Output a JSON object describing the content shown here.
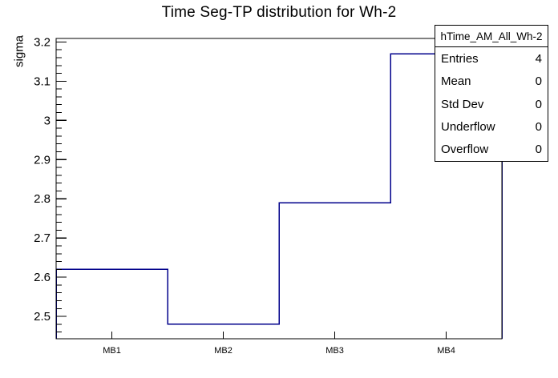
{
  "title": "Time Seg-TP distribution for Wh-2",
  "y_axis": {
    "label": "sigma"
  },
  "stats_box": {
    "header": "hTime_AM_All_Wh-2",
    "rows": [
      {
        "label": "Entries",
        "value": "4"
      },
      {
        "label": "Mean",
        "value": "0"
      },
      {
        "label": "Std Dev",
        "value": "0"
      },
      {
        "label": "Underflow",
        "value": "0"
      },
      {
        "label": "Overflow",
        "value": "0"
      }
    ]
  },
  "chart_data": {
    "type": "step-histogram",
    "title": "Time Seg-TP distribution for Wh-2",
    "categories": [
      "MB1",
      "MB2",
      "MB3",
      "MB4"
    ],
    "values": [
      2.62,
      2.48,
      2.79,
      3.17
    ],
    "xlabel": "",
    "ylabel": "sigma",
    "ylim": [
      2.443,
      3.209
    ],
    "y_major_ticks": [
      2.5,
      2.6,
      2.7,
      2.8,
      2.9,
      3,
      3.1,
      3.2
    ],
    "y_minor_tick_step": 0.02,
    "grid": false,
    "legend_position": "none",
    "line_color": "#00008b"
  },
  "colors": {
    "axis": "#000000",
    "background": "#ffffff",
    "histogram_line": "#00008b"
  }
}
